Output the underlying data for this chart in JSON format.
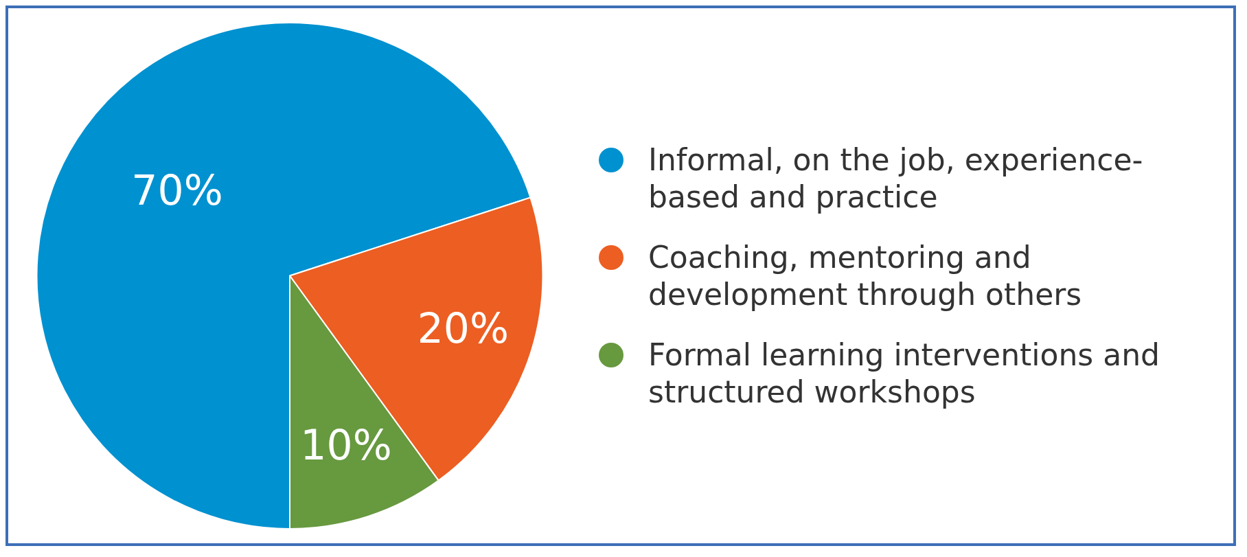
{
  "chart_data": {
    "type": "pie",
    "categories": [
      "Informal, on the job, experience-based and practice",
      "Coaching, mentoring and development through others",
      "Formal learning interventions and structured workshops"
    ],
    "values": [
      70,
      20,
      10
    ],
    "colors": [
      "#0091d0",
      "#ec5e22",
      "#67993f"
    ],
    "value_labels": [
      "70%",
      "20%",
      "10%"
    ],
    "legend": "right"
  }
}
